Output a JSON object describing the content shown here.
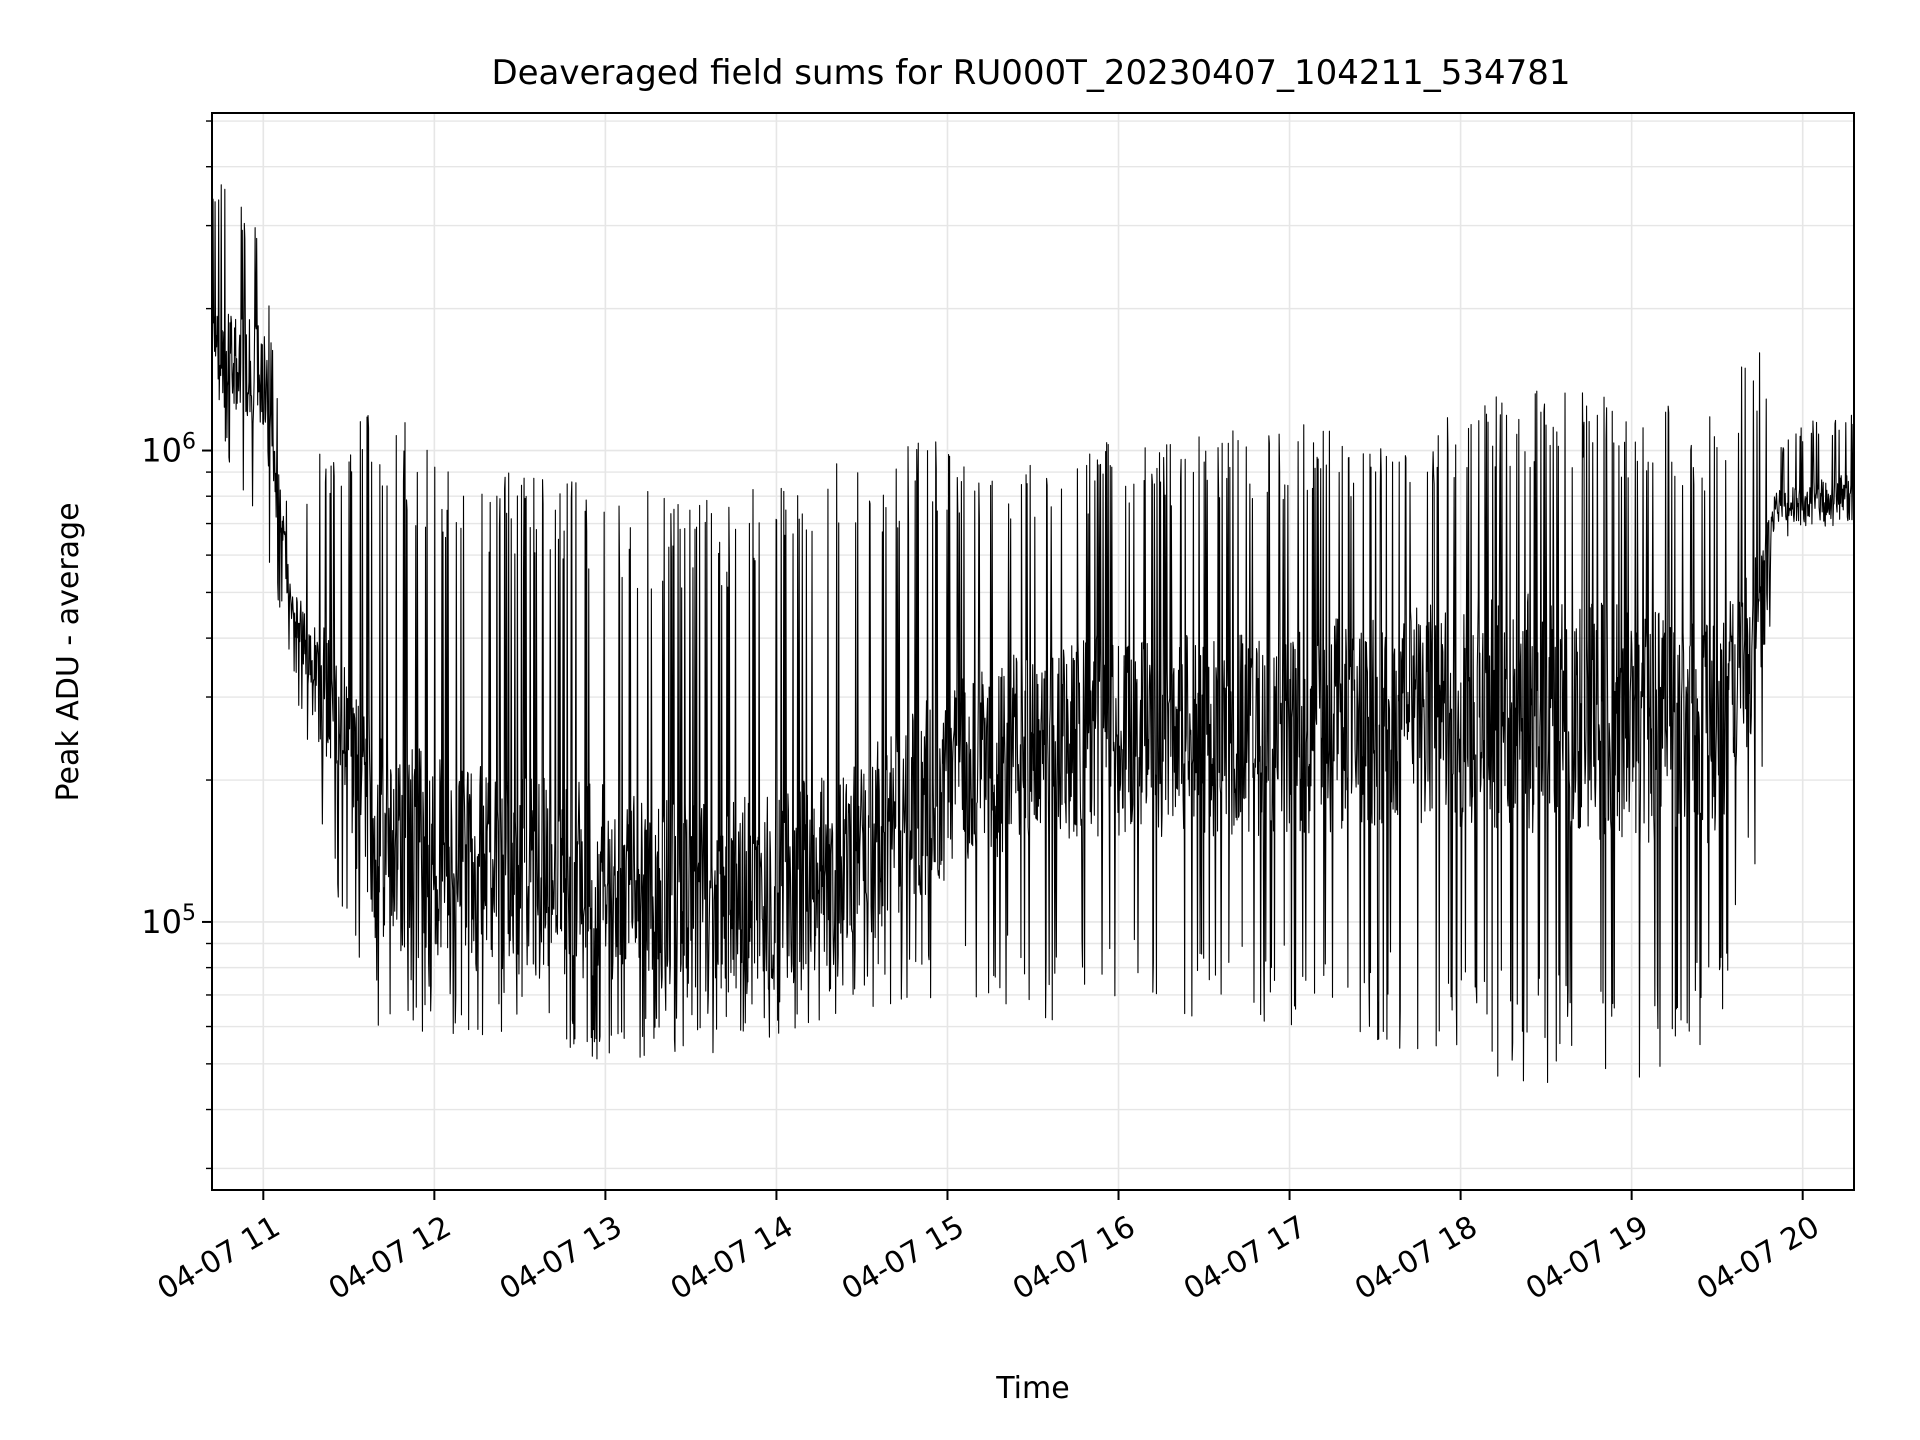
{
  "chart_data": {
    "type": "line",
    "title": "Deaveraged field sums for RU000T_20230407_104211_534781",
    "xlabel": "Time",
    "ylabel": "Peak ADU - average",
    "yscale": "log",
    "xlim": [
      "2023-04-07T10:42",
      "2023-04-07T20:18"
    ],
    "ylim": [
      27000,
      5200000
    ],
    "grid": true,
    "line_color": "#000000",
    "grid_color": "#e6e6e6",
    "x_ticks": [
      {
        "label": "04-07 11",
        "value": "2023-04-07T11:00"
      },
      {
        "label": "04-07 12",
        "value": "2023-04-07T12:00"
      },
      {
        "label": "04-07 13",
        "value": "2023-04-07T13:00"
      },
      {
        "label": "04-07 14",
        "value": "2023-04-07T14:00"
      },
      {
        "label": "04-07 15",
        "value": "2023-04-07T15:00"
      },
      {
        "label": "04-07 16",
        "value": "2023-04-07T16:00"
      },
      {
        "label": "04-07 17",
        "value": "2023-04-07T17:00"
      },
      {
        "label": "04-07 18",
        "value": "2023-04-07T18:00"
      },
      {
        "label": "04-07 19",
        "value": "2023-04-07T19:00"
      },
      {
        "label": "04-07 20",
        "value": "2023-04-07T20:00"
      }
    ],
    "y_ticks": [
      {
        "mantissa": "10",
        "exponent": "5",
        "value": 100000
      },
      {
        "mantissa": "10",
        "exponent": "6",
        "value": 1000000
      }
    ],
    "series": [
      {
        "x": [
          "2023-04-07T10:42",
          "2023-04-07T10:50",
          "2023-04-07T11:00",
          "2023-04-07T11:10",
          "2023-04-07T11:20",
          "2023-04-07T11:40",
          "2023-04-07T12:00",
          "2023-04-07T12:30",
          "2023-04-07T13:00",
          "2023-04-07T13:30",
          "2023-04-07T14:00",
          "2023-04-07T14:30",
          "2023-04-07T15:00",
          "2023-04-07T15:30",
          "2023-04-07T16:00",
          "2023-04-07T16:30",
          "2023-04-07T17:00",
          "2023-04-07T17:30",
          "2023-04-07T18:00",
          "2023-04-07T18:30",
          "2023-04-07T19:00",
          "2023-04-07T19:30",
          "2023-04-07T19:45",
          "2023-04-07T19:50",
          "2023-04-07T20:00",
          "2023-04-07T20:18"
        ],
        "y": [
          1500000,
          1550000,
          1400000,
          460000,
          320000,
          150000,
          135000,
          125000,
          120000,
          110000,
          115000,
          140000,
          200000,
          240000,
          250000,
          250000,
          255000,
          265000,
          275000,
          280000,
          260000,
          250000,
          400000,
          750000,
          780000,
          820000
        ],
        "upper": [
          4200000,
          3500000,
          2800000,
          600000,
          1100000,
          1300000,
          1100000,
          900000,
          850000,
          800000,
          900000,
          1000000,
          1100000,
          1000000,
          1050000,
          1100000,
          1150000,
          1150000,
          1250000,
          1400000,
          1300000,
          1200000,
          1800000,
          1000000,
          1150000,
          1200000
        ],
        "lower": [
          1000000,
          900000,
          600000,
          350000,
          150000,
          60000,
          58000,
          55000,
          50000,
          52000,
          55000,
          65000,
          70000,
          62000,
          60000,
          62000,
          60000,
          55000,
          48000,
          45000,
          45000,
          55000,
          140000,
          620000,
          680000,
          700000
        ]
      }
    ]
  }
}
